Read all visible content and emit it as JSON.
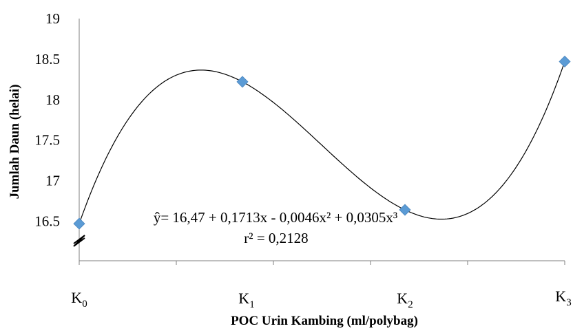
{
  "chart_data": {
    "type": "scatter",
    "title": "",
    "xlabel": "POC Urin Kambing (ml/polybag)",
    "ylabel": "Jumlah Daun (helai)",
    "categories": [
      {
        "main": "K",
        "sub": "0"
      },
      {
        "main": "K",
        "sub": "1"
      },
      {
        "main": "K",
        "sub": "2"
      },
      {
        "main": "K",
        "sub": "3"
      }
    ],
    "x": [
      0,
      1,
      2,
      3
    ],
    "values": [
      16.47,
      18.22,
      16.64,
      18.47
    ],
    "ylim": [
      16.5,
      19
    ],
    "yticks": [
      "16.5",
      "17",
      "17.5",
      "18",
      "18.5",
      "19"
    ],
    "ytick_values": [
      16.5,
      17,
      17.5,
      18,
      18.5,
      19
    ],
    "grid": false,
    "legend": "none",
    "axis_break": true,
    "trendline": "cubic polynomial",
    "equation": {
      "line1": "ŷ= 16,47 + 0,1713x - 0,0046x² + 0,0305x³",
      "line2": "r² = 0,2128"
    },
    "colors": {
      "marker": "#5b9bd5",
      "trendline": "#000000",
      "axis": "#7f7f7f"
    }
  }
}
